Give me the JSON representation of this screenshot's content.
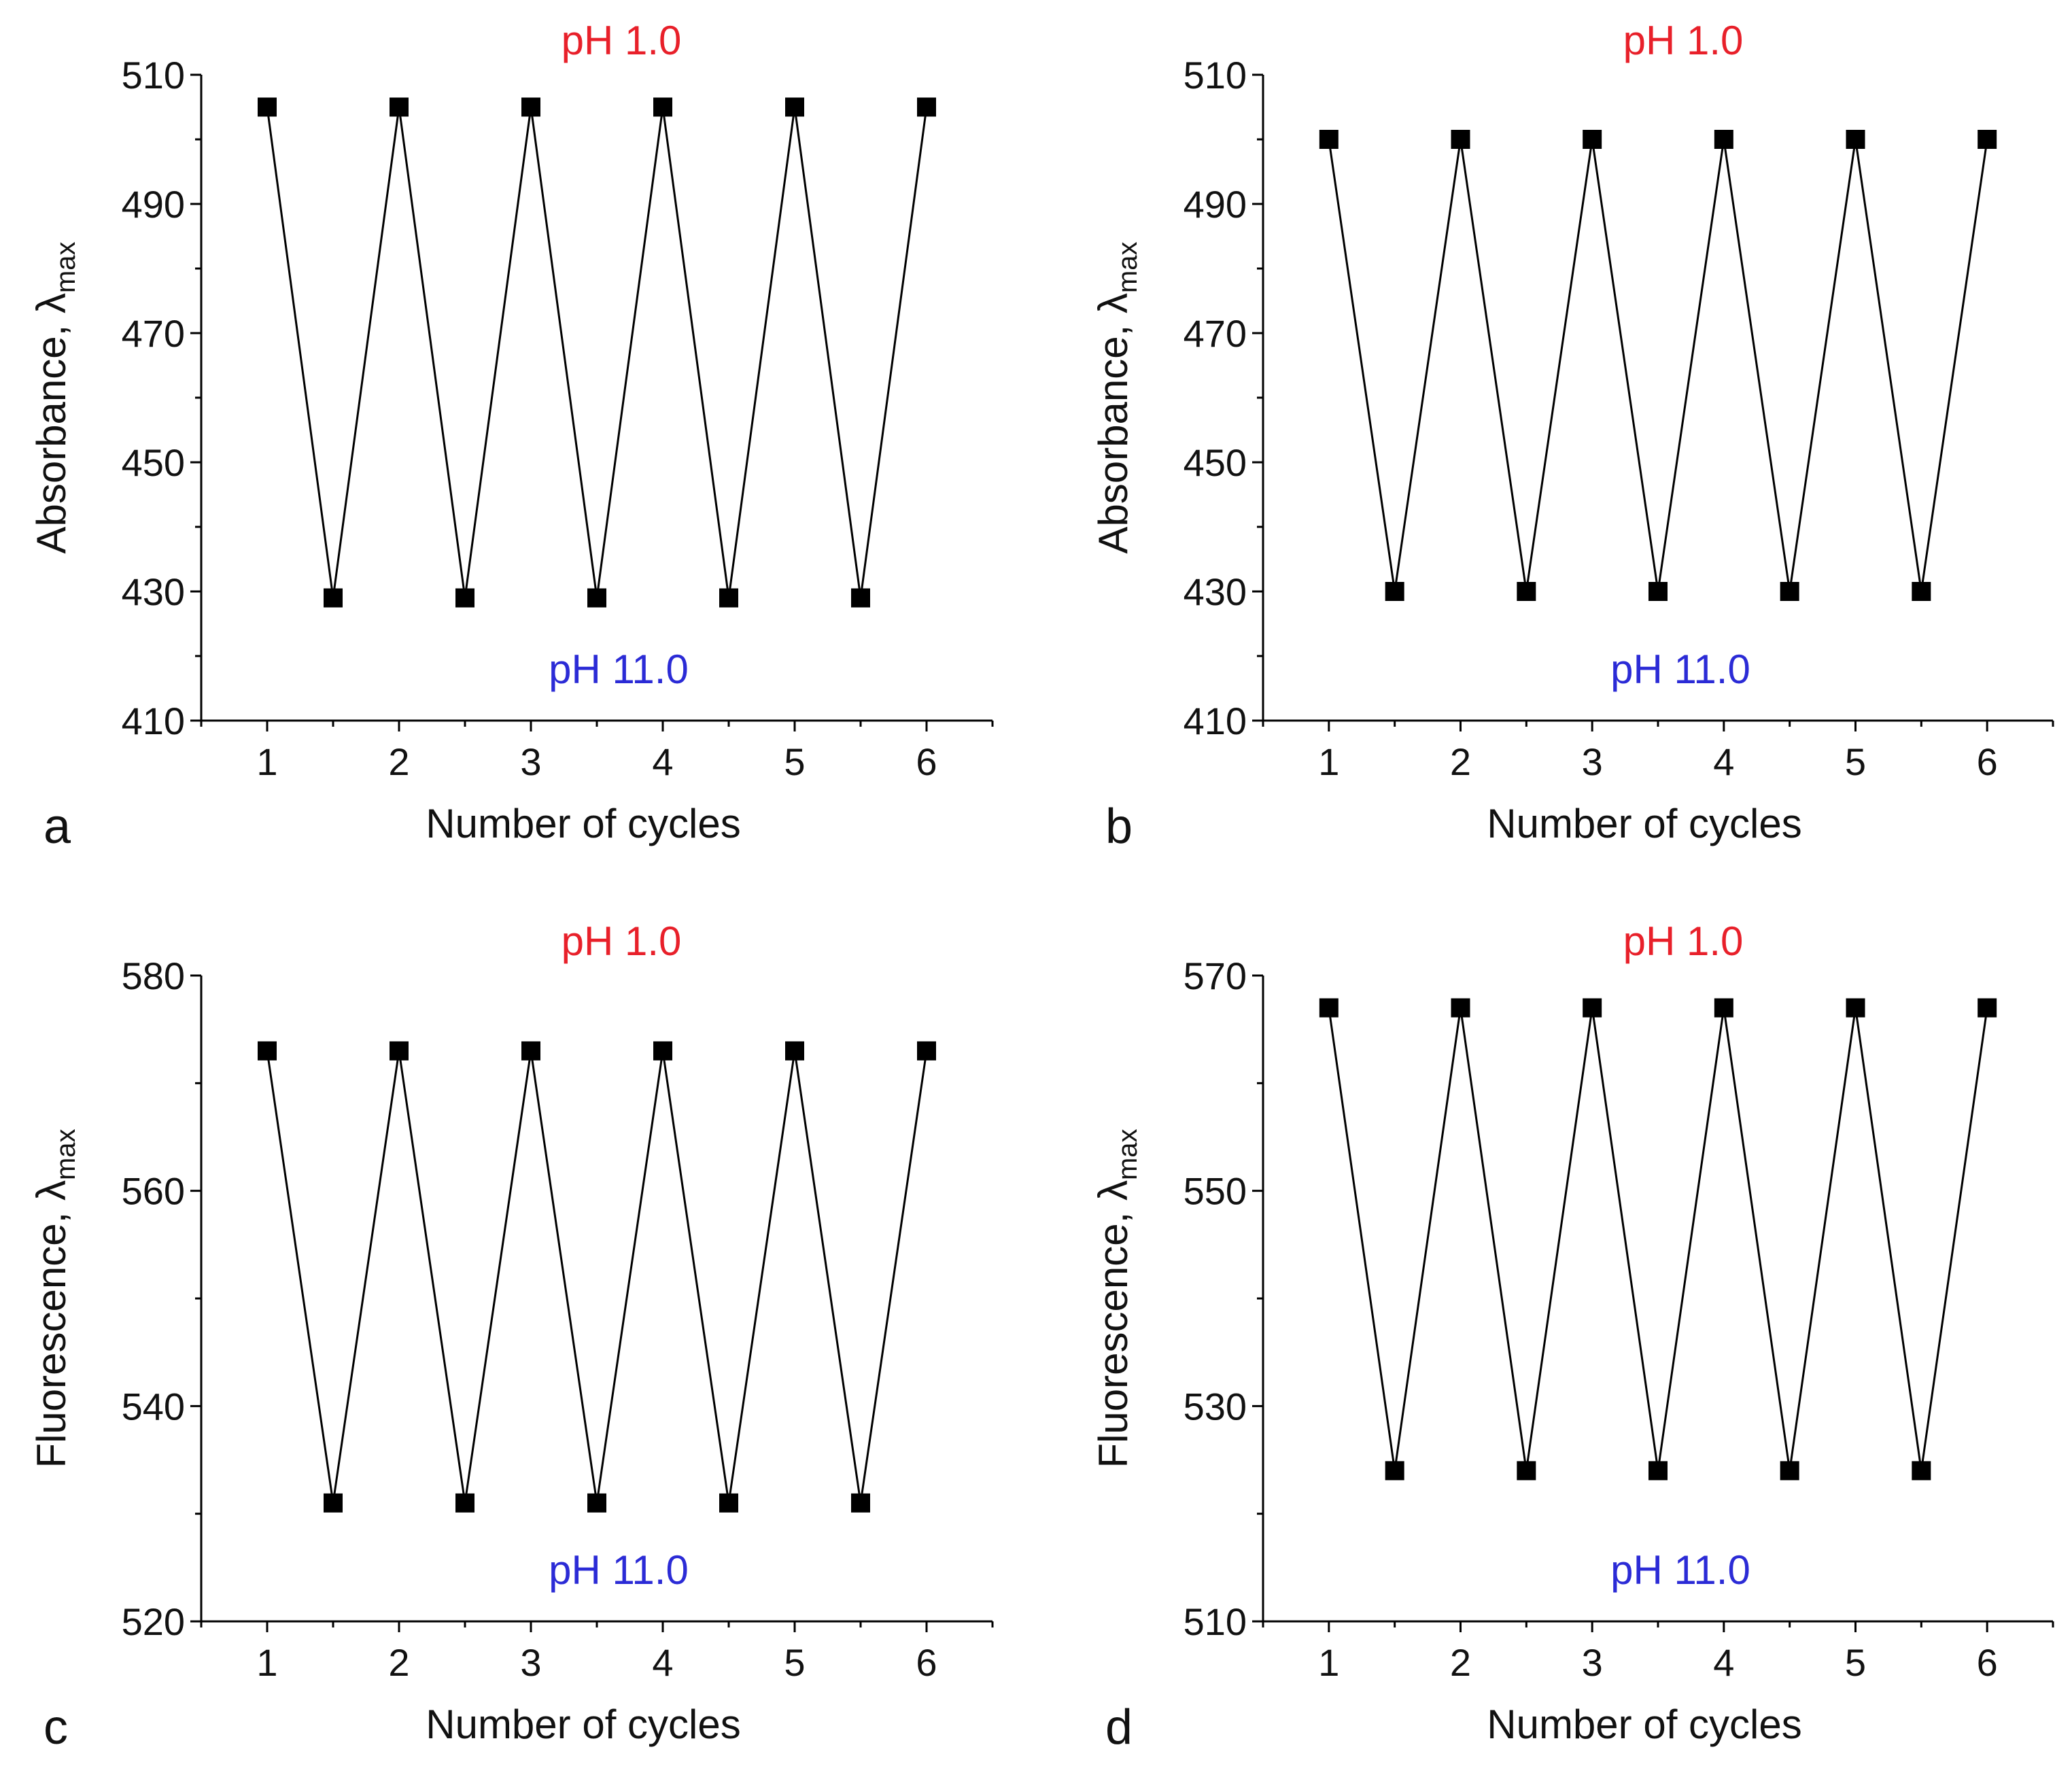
{
  "colors": {
    "acid_label": "#e8202a",
    "base_label": "#2b2bd6",
    "ink": "#000000"
  },
  "chart_data": [
    {
      "panel": "a",
      "type": "line",
      "x": [
        1,
        1.5,
        2,
        2.5,
        3,
        3.5,
        4,
        4.5,
        5,
        5.5,
        6
      ],
      "series": [
        {
          "name": "Absorbance",
          "marker": "square",
          "values": [
            505,
            429,
            505,
            429,
            505,
            429,
            505,
            429,
            505,
            429,
            505
          ]
        }
      ],
      "xlabel": "Number of cycles",
      "ylabel_main": "Absorbance, λ",
      "ylabel_sub": "max",
      "xlim": [
        0.5,
        6.5
      ],
      "ylim": [
        410,
        510
      ],
      "xticks": [
        1,
        2,
        3,
        4,
        5,
        6
      ],
      "yticks": [
        410,
        430,
        450,
        470,
        490,
        510
      ],
      "annotations": {
        "top": "pH 1.0",
        "bottom": "pH 11.0"
      }
    },
    {
      "panel": "b",
      "type": "line",
      "x": [
        1,
        1.5,
        2,
        2.5,
        3,
        3.5,
        4,
        4.5,
        5,
        5.5,
        6
      ],
      "series": [
        {
          "name": "Absorbance",
          "marker": "square",
          "values": [
            500,
            430,
            500,
            430,
            500,
            430,
            500,
            430,
            500,
            430,
            500
          ]
        }
      ],
      "xlabel": "Number of cycles",
      "ylabel_main": "Absorbance, λ",
      "ylabel_sub": "max",
      "xlim": [
        0.5,
        6.5
      ],
      "ylim": [
        410,
        510
      ],
      "xticks": [
        1,
        2,
        3,
        4,
        5,
        6
      ],
      "yticks": [
        410,
        430,
        450,
        470,
        490,
        510
      ],
      "annotations": {
        "top": "pH 1.0",
        "bottom": "pH 11.0"
      }
    },
    {
      "panel": "c",
      "type": "line",
      "x": [
        1,
        1.5,
        2,
        2.5,
        3,
        3.5,
        4,
        4.5,
        5,
        5.5,
        6
      ],
      "series": [
        {
          "name": "Fluorescence",
          "marker": "square",
          "values": [
            573,
            531,
            573,
            531,
            573,
            531,
            573,
            531,
            573,
            531,
            573
          ]
        }
      ],
      "xlabel": "Number of cycles",
      "ylabel_main": "Fluorescence, λ",
      "ylabel_sub": "max",
      "xlim": [
        0.5,
        6.5
      ],
      "ylim": [
        520,
        580
      ],
      "xticks": [
        1,
        2,
        3,
        4,
        5,
        6
      ],
      "yticks": [
        520,
        540,
        560,
        580
      ],
      "annotations": {
        "top": "pH 1.0",
        "bottom": "pH 11.0"
      }
    },
    {
      "panel": "d",
      "type": "line",
      "x": [
        1,
        1.5,
        2,
        2.5,
        3,
        3.5,
        4,
        4.5,
        5,
        5.5,
        6
      ],
      "series": [
        {
          "name": "Fluorescence",
          "marker": "square",
          "values": [
            567,
            524,
            567,
            524,
            567,
            524,
            567,
            524,
            567,
            524,
            567
          ]
        }
      ],
      "xlabel": "Number of cycles",
      "ylabel_main": "Fluorescence, λ",
      "ylabel_sub": "max",
      "xlim": [
        0.5,
        6.5
      ],
      "ylim": [
        510,
        570
      ],
      "xticks": [
        1,
        2,
        3,
        4,
        5,
        6
      ],
      "yticks": [
        510,
        530,
        550,
        570
      ],
      "annotations": {
        "top": "pH 1.0",
        "bottom": "pH 11.0"
      }
    }
  ]
}
